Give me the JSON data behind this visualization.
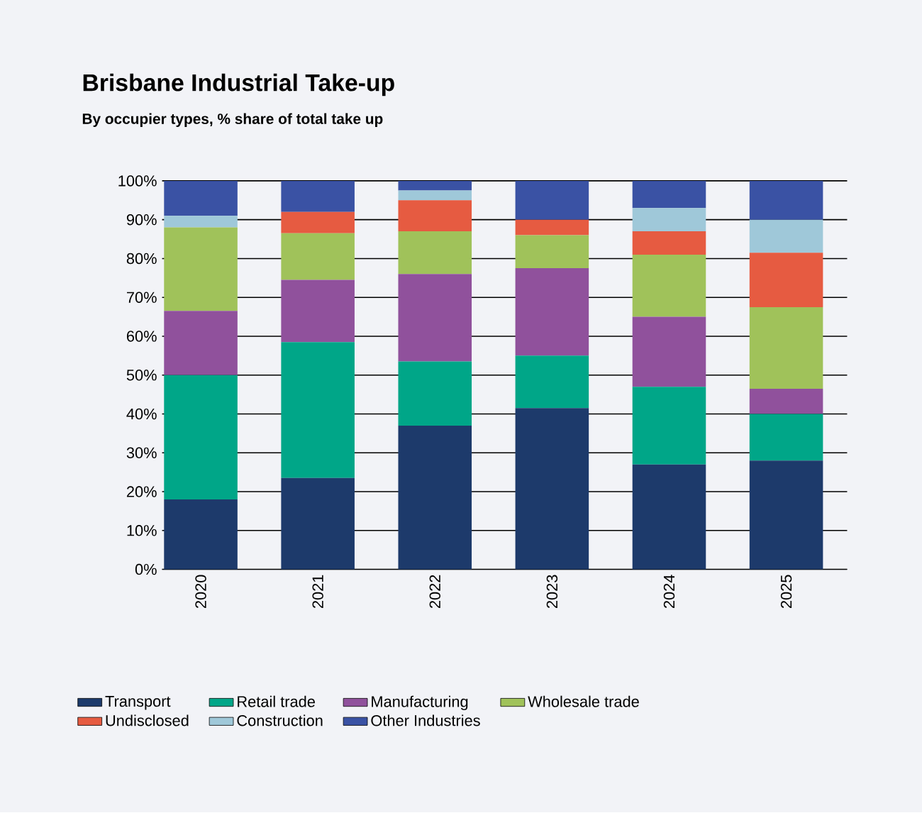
{
  "chart_data": {
    "type": "bar",
    "stacked": true,
    "title": "Brisbane Industrial Take-up",
    "subtitle": "By occupier types, % share of total take up",
    "categories": [
      "2020",
      "2021",
      "2022",
      "2023",
      "2024",
      "2025"
    ],
    "series": [
      {
        "name": "Transport",
        "color": "#1d3a6b",
        "values": [
          18,
          23.5,
          37,
          41.5,
          27,
          28
        ]
      },
      {
        "name": "Retail trade",
        "color": "#00a688",
        "values": [
          32,
          35,
          16.5,
          13.5,
          20,
          12
        ]
      },
      {
        "name": "Manufacturing",
        "color": "#90519c",
        "values": [
          16.5,
          16,
          22.5,
          22.5,
          18,
          6.5
        ]
      },
      {
        "name": "Wholesale trade",
        "color": "#a0c25a",
        "values": [
          21.5,
          12,
          11,
          8.5,
          16,
          21
        ]
      },
      {
        "name": "Undisclosed",
        "color": "#e65b41",
        "values": [
          0,
          5.5,
          8,
          4,
          6,
          14
        ]
      },
      {
        "name": "Construction",
        "color": "#9fc8d9",
        "values": [
          3,
          0,
          2.5,
          0,
          6,
          8.5
        ]
      },
      {
        "name": "Other Industries",
        "color": "#3a52a4",
        "values": [
          9,
          8,
          2.5,
          10,
          7,
          10
        ]
      }
    ],
    "ylim": [
      0,
      100
    ],
    "yticks": [
      {
        "value": 0,
        "label": "0%"
      },
      {
        "value": 10,
        "label": "10%"
      },
      {
        "value": 20,
        "label": "20%"
      },
      {
        "value": 30,
        "label": "30%"
      },
      {
        "value": 40,
        "label": "40%"
      },
      {
        "value": 50,
        "label": "50%"
      },
      {
        "value": 60,
        "label": "60%"
      },
      {
        "value": 70,
        "label": "70%"
      },
      {
        "value": 80,
        "label": "80%"
      },
      {
        "value": 90,
        "label": "90%"
      },
      {
        "value": 100,
        "label": "100%"
      }
    ],
    "grid": "y",
    "legend": "bottom"
  }
}
